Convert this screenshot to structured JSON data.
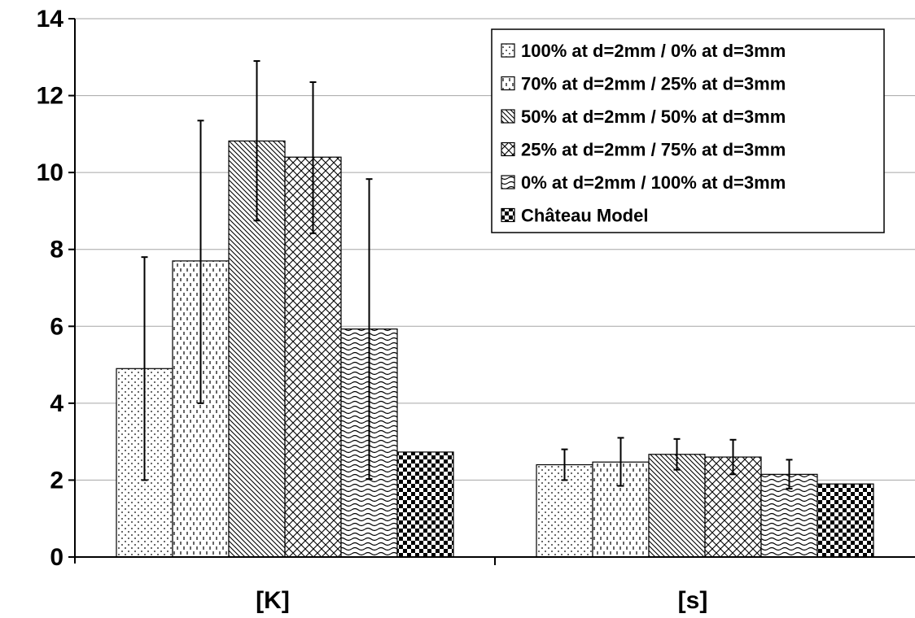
{
  "chart_data": {
    "type": "bar",
    "categories": [
      "[K]",
      "[s]"
    ],
    "ylim": [
      0,
      14
    ],
    "yticks": [
      0,
      2,
      4,
      6,
      8,
      10,
      12,
      14
    ],
    "grid": true,
    "legend_position": "top-right",
    "series": [
      {
        "name": "100% at d=2mm / 0% at d=3mm",
        "pattern": "dots",
        "values": [
          4.9,
          2.4
        ],
        "err_low": [
          2.0,
          2.0
        ],
        "err_high": [
          7.8,
          2.8
        ]
      },
      {
        "name": "70% at d=2mm / 25% at d=3mm",
        "pattern": "dashes",
        "values": [
          7.7,
          2.47
        ],
        "err_low": [
          4.0,
          1.85
        ],
        "err_high": [
          11.35,
          3.1
        ]
      },
      {
        "name": "50% at d=2mm / 50% at d=3mm",
        "pattern": "diagonal",
        "values": [
          10.82,
          2.67
        ],
        "err_low": [
          8.75,
          2.27
        ],
        "err_high": [
          12.9,
          3.07
        ]
      },
      {
        "name": "25% at d=2mm / 75% at d=3mm",
        "pattern": "crosshatch",
        "values": [
          10.4,
          2.6
        ],
        "err_low": [
          8.42,
          2.15
        ],
        "err_high": [
          12.35,
          3.05
        ]
      },
      {
        "name": "0% at d=2mm / 100% at d=3mm",
        "pattern": "waves",
        "values": [
          5.93,
          2.15
        ],
        "err_low": [
          2.03,
          1.78
        ],
        "err_high": [
          9.83,
          2.53
        ]
      },
      {
        "name": "Château Model",
        "pattern": "checker",
        "values": [
          2.73,
          1.9
        ]
      }
    ]
  }
}
